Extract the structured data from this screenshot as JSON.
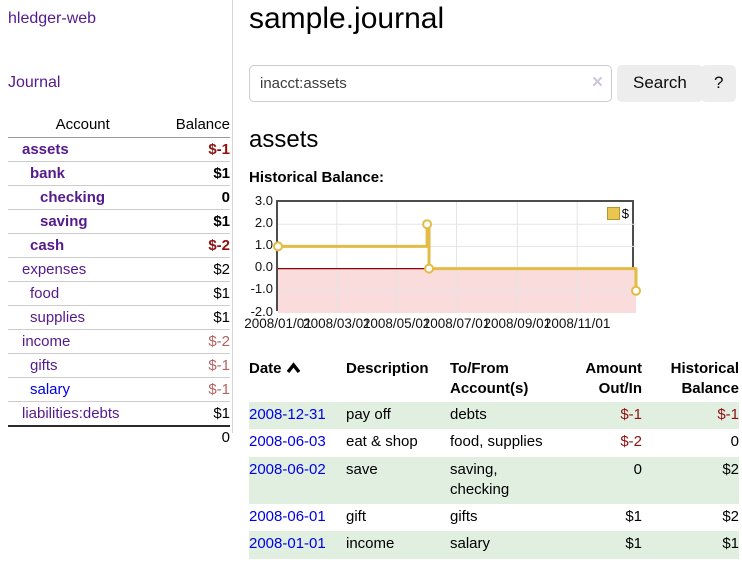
{
  "app": {
    "title": "hledger-web"
  },
  "sidebar": {
    "journal_link": "Journal",
    "accounts_table": {
      "col_account": "Account",
      "col_balance": "Balance",
      "rows": [
        {
          "name": "assets",
          "balance": "$-1"
        },
        {
          "name": "bank",
          "balance": "$1"
        },
        {
          "name": "checking",
          "balance": "0"
        },
        {
          "name": "saving",
          "balance": "$1"
        },
        {
          "name": "cash",
          "balance": "$-2"
        },
        {
          "name": "expenses",
          "balance": "$2"
        },
        {
          "name": "food",
          "balance": "$1"
        },
        {
          "name": "supplies",
          "balance": "$1"
        },
        {
          "name": "income",
          "balance": "$-2"
        },
        {
          "name": "gifts",
          "balance": "$-1"
        },
        {
          "name": "salary",
          "balance": "$-1"
        },
        {
          "name": "liabilities:debts",
          "balance": "$1"
        }
      ],
      "total": "0"
    }
  },
  "main": {
    "title": "sample.journal",
    "search": {
      "value": "inacct:assets",
      "clear_icon": "×",
      "search_button": "Search",
      "help_button": "?"
    },
    "account_heading": "assets",
    "chart_label": "Historical Balance:"
  },
  "chart_data": {
    "type": "line",
    "step": true,
    "title": "Historical Balance of assets",
    "legend": [
      "$"
    ],
    "x_domain_days": [
      0,
      365
    ],
    "ylim": [
      -2.0,
      3.0
    ],
    "y_ticks": [
      3.0,
      2.0,
      1.0,
      0.0,
      -1.0,
      -2.0
    ],
    "x_ticks": [
      {
        "label": "2008/01/01",
        "day": 0
      },
      {
        "label": "2008/03/01",
        "day": 60
      },
      {
        "label": "2008/05/01",
        "day": 121
      },
      {
        "label": "2008/07/01",
        "day": 182
      },
      {
        "label": "2008/09/01",
        "day": 244
      },
      {
        "label": "2008/11/01",
        "day": 305
      }
    ],
    "points": [
      {
        "date": "2008-01-01",
        "day": 0,
        "value": 1.0
      },
      {
        "date": "2008-06-01",
        "day": 152,
        "value": 2.0
      },
      {
        "date": "2008-06-03",
        "day": 154,
        "value": 0.0
      },
      {
        "date": "2008-12-31",
        "day": 365,
        "value": -1.0
      }
    ],
    "colors": {
      "line": "#e2bc45",
      "marker_fill": "#ffffff",
      "negative_region": "#fadcdc",
      "zero_line": "#8b0000",
      "grid": "#e4e4e4",
      "border": "#4d4d4d"
    }
  },
  "register": {
    "sort_icon": "chevron-up",
    "headers": {
      "date": "Date",
      "description": "Description",
      "tofrom": "To/From\nAccount(s)",
      "amount": "Amount\nOut/In",
      "balance": "Historical\nBalance"
    },
    "rows": [
      {
        "date": "2008-12-31",
        "description": "pay off",
        "tofrom": "debts",
        "amount": "$-1",
        "balance": "$-1"
      },
      {
        "date": "2008-06-03",
        "description": "eat & shop",
        "tofrom": "food, supplies",
        "amount": "$-2",
        "balance": "0"
      },
      {
        "date": "2008-06-02",
        "description": "save",
        "tofrom": "saving,\nchecking",
        "amount": "0",
        "balance": "$2"
      },
      {
        "date": "2008-06-01",
        "description": "gift",
        "tofrom": "gifts",
        "amount": "$1",
        "balance": "$2"
      },
      {
        "date": "2008-01-01",
        "description": "income",
        "tofrom": "salary",
        "amount": "$1",
        "balance": "$1"
      }
    ]
  }
}
